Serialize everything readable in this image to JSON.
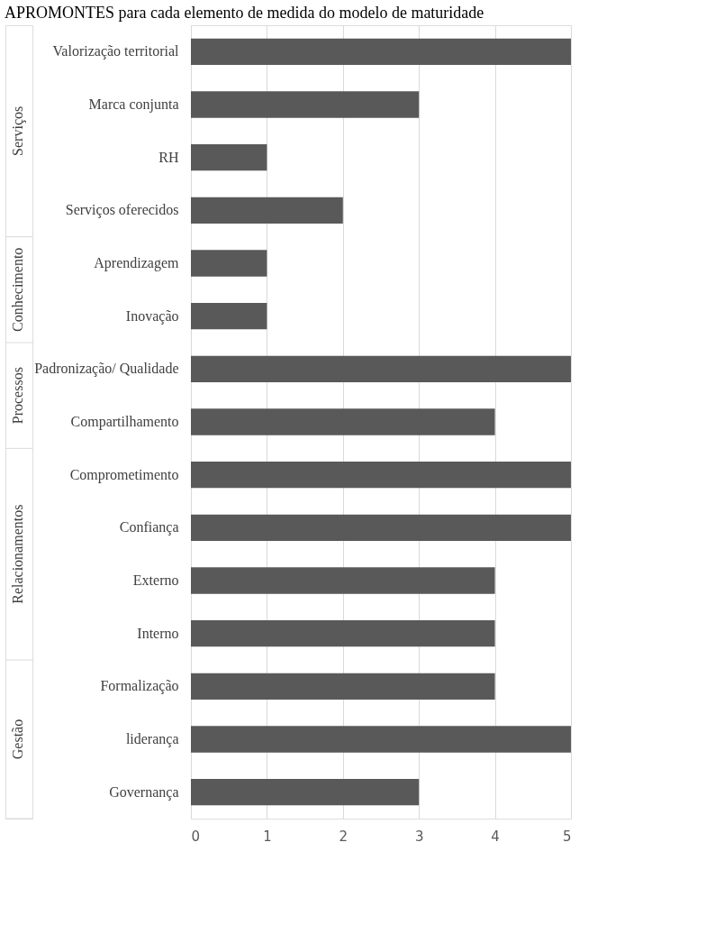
{
  "chart_data": {
    "type": "bar",
    "orientation": "horizontal",
    "title": "APROMONTES para cada elemento de medida do modelo de maturidade",
    "categories": [
      "Valorização territorial",
      "Marca conjunta",
      "RH",
      "Serviços oferecidos",
      "Aprendizagem",
      "Inovação",
      "Padronização/ Qualidade",
      "Compartilhamento",
      "Comprometimento",
      "Confiança",
      "Externo",
      "Interno",
      "Formalização",
      "liderança",
      "Governança"
    ],
    "values": [
      5,
      3,
      1,
      2,
      1,
      1,
      5,
      4,
      5,
      5,
      4,
      4,
      4,
      5,
      3
    ],
    "color": "#595959",
    "xlim": [
      0,
      5
    ],
    "xticks": [
      0,
      1,
      2,
      3,
      4,
      5
    ],
    "grid": "x",
    "annotations": [
      "Serviços",
      "Conhecimento",
      "Processos",
      "Relacionamentos",
      "Gestão"
    ]
  }
}
